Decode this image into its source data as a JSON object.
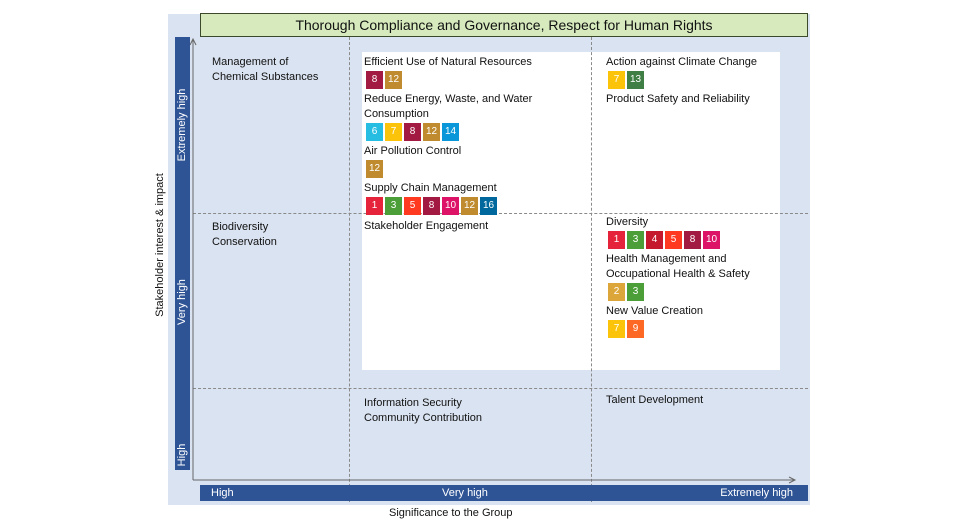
{
  "title": "Thorough Compliance and Governance, Respect for Human Rights",
  "y_axis": {
    "title": "Stakeholder interest & impact",
    "levels": [
      "Extremely high",
      "Very high",
      "High"
    ]
  },
  "x_axis": {
    "title": "Significance to the Group",
    "levels": [
      "High",
      "Very high",
      "Extremely high"
    ]
  },
  "sdg_colors": {
    "1": "#e5243b",
    "2": "#dda63a",
    "3": "#4c9f38",
    "4": "#c5192d",
    "5": "#ff3a21",
    "6": "#26bde2",
    "7": "#fcc30b",
    "8": "#a21942",
    "9": "#fd6925",
    "10": "#dd1367",
    "12": "#bf8b2e",
    "13": "#3f7e44",
    "14": "#0a97d9",
    "16": "#00689d"
  },
  "cells": {
    "eh_h": [
      {
        "label": "Management of Chemical Substances",
        "goals": []
      }
    ],
    "eh_vh": [
      {
        "label": "Efficient Use of Natural Resources",
        "goals": [
          "8",
          "12"
        ]
      },
      {
        "label": "Reduce Energy, Waste, and Water Consumption",
        "goals": [
          "6",
          "7",
          "8",
          "12",
          "14"
        ]
      },
      {
        "label": "Air Pollution Control",
        "goals": [
          "12"
        ]
      },
      {
        "label": "Supply Chain Management",
        "goals": [
          "1",
          "3",
          "5",
          "8",
          "10",
          "12",
          "16"
        ]
      }
    ],
    "eh_eh": [
      {
        "label": "Action against Climate Change",
        "goals": [
          "7",
          "13"
        ]
      },
      {
        "label": "Product Safety and Reliability",
        "goals": []
      }
    ],
    "vh_h": [
      {
        "label": "Biodiversity Conservation",
        "goals": []
      }
    ],
    "vh_vh": [
      {
        "label": "Stakeholder Engagement",
        "goals": []
      }
    ],
    "vh_eh": [
      {
        "label": "Diversity",
        "goals": [
          "1",
          "3",
          "4",
          "5",
          "8",
          "10"
        ]
      },
      {
        "label": "Health Management and Occupational Health & Safety",
        "goals": [
          "2",
          "3"
        ]
      },
      {
        "label": "New Value Creation",
        "goals": [
          "7",
          "9"
        ]
      }
    ],
    "h_h": [],
    "h_vh": [
      {
        "label": "Information Security",
        "goals": []
      },
      {
        "label": "Community Contribution",
        "goals": []
      }
    ],
    "h_eh": [
      {
        "label": "Talent Development",
        "goals": []
      }
    ]
  }
}
